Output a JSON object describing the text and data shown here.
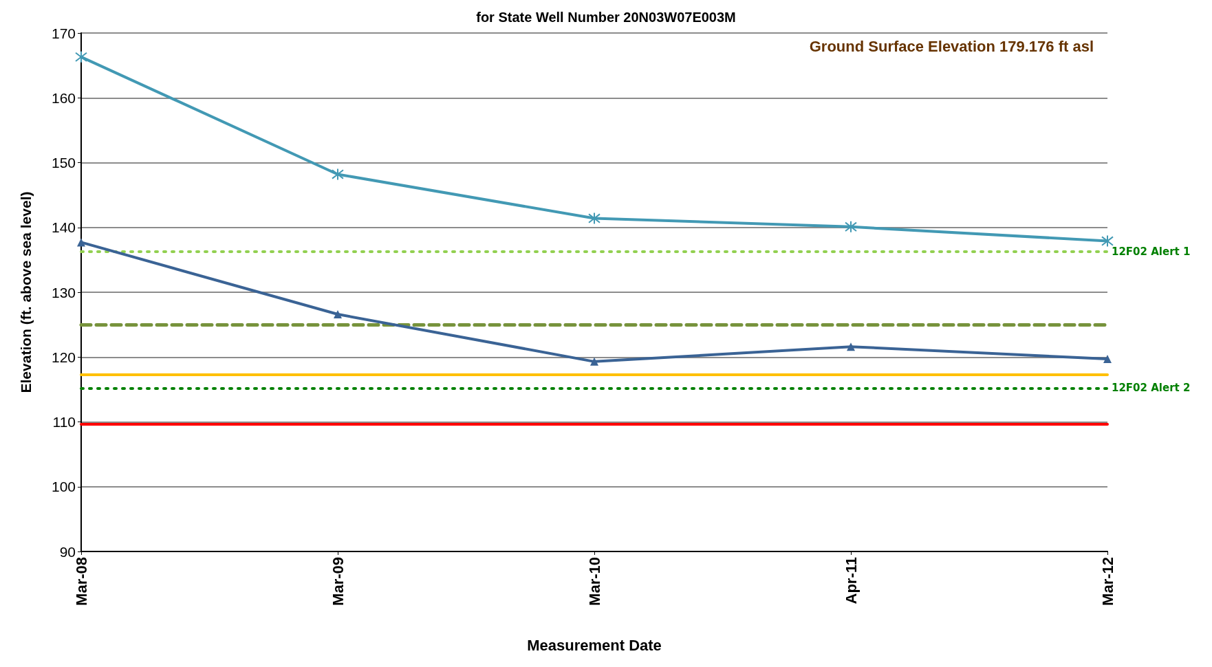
{
  "chart_data": {
    "type": "line",
    "title": "for State Well Number 20N03W07E003M",
    "xlabel": "Measurement Date",
    "ylabel": "Elevation (ft. above sea level)",
    "categories": [
      "Mar-08",
      "Mar-09",
      "Mar-10",
      "Apr-11",
      "Mar-12"
    ],
    "series": [
      {
        "color": "#4299b4",
        "marker": "cross",
        "values": [
          166.3,
          148.2,
          141.4,
          140.1,
          137.9
        ]
      },
      {
        "color": "#3a6395",
        "marker": "triangle",
        "values": [
          137.7,
          126.6,
          119.3,
          121.6,
          119.7
        ]
      }
    ],
    "ylim": [
      90,
      170
    ],
    "yticks": [
      90,
      100,
      110,
      120,
      130,
      140,
      150,
      160,
      170
    ],
    "grid": "y",
    "line_style": "solid",
    "ref_lines": [
      {
        "axis": "y",
        "value": 136.3,
        "label": "12F02 Alert 1",
        "color": "#92d050",
        "line_style": "dotted"
      },
      {
        "axis": "y",
        "value": 125,
        "label": null,
        "color": "#77933c",
        "line_style": "dashed"
      },
      {
        "axis": "y",
        "value": 117.3,
        "label": null,
        "color": "#ffc000",
        "line_style": "solid"
      },
      {
        "axis": "y",
        "value": 115.2,
        "label": "12F02 Alert 2",
        "color": "#008000",
        "line_style": "dotted"
      },
      {
        "axis": "y",
        "value": 109.7,
        "label": null,
        "color": "#ff0000",
        "line_style": "solid"
      }
    ],
    "annotations": [
      "Ground Surface Elevation 179.176 ft asl"
    ]
  }
}
